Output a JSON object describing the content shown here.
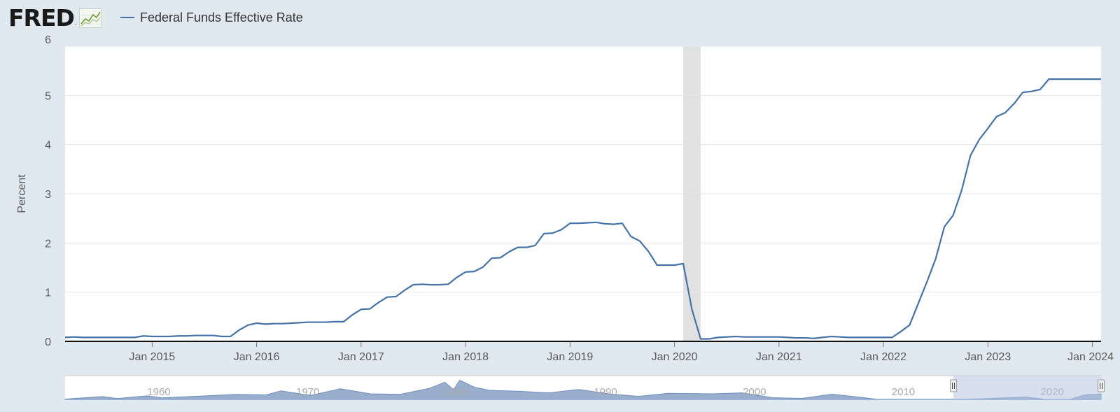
{
  "brand": {
    "logo_text": "FRED",
    "logo_mark": ".",
    "icon": "line-chart-icon"
  },
  "colors": {
    "page_background": "#e1e9f0",
    "plot_background": "#ffffff",
    "series": "#4572a7",
    "recession": "#e1e1e1",
    "gridline": "#e6e6e6",
    "navigator_fill": "#99aecc",
    "navigator_selection": "#b7c5e1"
  },
  "chart_data": {
    "type": "line",
    "title": "",
    "xlabel": "",
    "ylabel": "Percent",
    "ylim": [
      0,
      6
    ],
    "yticks": [
      0,
      1,
      2,
      3,
      4,
      5,
      6
    ],
    "xlim": [
      "2014-03",
      "2024-02"
    ],
    "xtick_labels": [
      "Jan 2015",
      "Jan 2016",
      "Jan 2017",
      "Jan 2018",
      "Jan 2019",
      "Jan 2020",
      "Jan 2021",
      "Jan 2022",
      "Jan 2023",
      "Jan 2024"
    ],
    "grid": true,
    "legend_position": "top-left",
    "series": [
      {
        "name": "Federal Funds Effective Rate",
        "color": "#4572a7",
        "x": [
          "2014-03",
          "2014-04",
          "2014-05",
          "2014-06",
          "2014-07",
          "2014-08",
          "2014-09",
          "2014-10",
          "2014-11",
          "2014-12",
          "2015-01",
          "2015-02",
          "2015-03",
          "2015-04",
          "2015-05",
          "2015-06",
          "2015-07",
          "2015-08",
          "2015-09",
          "2015-10",
          "2015-11",
          "2015-12",
          "2016-01",
          "2016-02",
          "2016-03",
          "2016-04",
          "2016-05",
          "2016-06",
          "2016-07",
          "2016-08",
          "2016-09",
          "2016-10",
          "2016-11",
          "2016-12",
          "2017-01",
          "2017-02",
          "2017-03",
          "2017-04",
          "2017-05",
          "2017-06",
          "2017-07",
          "2017-08",
          "2017-09",
          "2017-10",
          "2017-11",
          "2017-12",
          "2018-01",
          "2018-02",
          "2018-03",
          "2018-04",
          "2018-05",
          "2018-06",
          "2018-07",
          "2018-08",
          "2018-09",
          "2018-10",
          "2018-11",
          "2018-12",
          "2019-01",
          "2019-02",
          "2019-03",
          "2019-04",
          "2019-05",
          "2019-06",
          "2019-07",
          "2019-08",
          "2019-09",
          "2019-10",
          "2019-11",
          "2019-12",
          "2020-01",
          "2020-02",
          "2020-03",
          "2020-04",
          "2020-05",
          "2020-06",
          "2020-07",
          "2020-08",
          "2020-09",
          "2020-10",
          "2020-11",
          "2020-12",
          "2021-01",
          "2021-02",
          "2021-03",
          "2021-04",
          "2021-05",
          "2021-06",
          "2021-07",
          "2021-08",
          "2021-09",
          "2021-10",
          "2021-11",
          "2021-12",
          "2022-01",
          "2022-02",
          "2022-03",
          "2022-04",
          "2022-05",
          "2022-06",
          "2022-07",
          "2022-08",
          "2022-09",
          "2022-10",
          "2022-11",
          "2022-12",
          "2023-01",
          "2023-02",
          "2023-03",
          "2023-04",
          "2023-05",
          "2023-06",
          "2023-07",
          "2023-08",
          "2023-09",
          "2023-10",
          "2023-11",
          "2023-12",
          "2024-01",
          "2024-02"
        ],
        "y": [
          0.08,
          0.09,
          0.08,
          0.08,
          0.08,
          0.08,
          0.08,
          0.08,
          0.08,
          0.11,
          0.1,
          0.1,
          0.1,
          0.11,
          0.11,
          0.12,
          0.12,
          0.12,
          0.1,
          0.1,
          0.23,
          0.33,
          0.37,
          0.35,
          0.36,
          0.36,
          0.37,
          0.38,
          0.39,
          0.39,
          0.39,
          0.4,
          0.4,
          0.54,
          0.65,
          0.66,
          0.79,
          0.9,
          0.91,
          1.04,
          1.15,
          1.16,
          1.15,
          1.15,
          1.16,
          1.3,
          1.41,
          1.42,
          1.51,
          1.69,
          1.7,
          1.82,
          1.91,
          1.91,
          1.95,
          2.19,
          2.2,
          2.27,
          2.4,
          2.4,
          2.41,
          2.42,
          2.39,
          2.38,
          2.4,
          2.13,
          2.04,
          1.83,
          1.55,
          1.55,
          1.55,
          1.58,
          0.65,
          0.05,
          0.05,
          0.08,
          0.09,
          0.1,
          0.09,
          0.09,
          0.09,
          0.09,
          0.09,
          0.08,
          0.07,
          0.07,
          0.06,
          0.08,
          0.1,
          0.09,
          0.08,
          0.08,
          0.08,
          0.08,
          0.08,
          0.08,
          0.2,
          0.33,
          0.77,
          1.21,
          1.68,
          2.33,
          2.56,
          3.08,
          3.78,
          4.1,
          4.33,
          4.57,
          4.65,
          4.83,
          5.06,
          5.08,
          5.12,
          5.33,
          5.33,
          5.33,
          5.33,
          5.33,
          5.33,
          5.33
        ]
      }
    ],
    "recessions": [
      {
        "start": "2020-02",
        "end": "2020-04"
      }
    ],
    "navigator": {
      "year_labels": [
        "1960",
        "1970",
        "1980",
        "1990",
        "2000",
        "2010",
        "2020"
      ],
      "selection": [
        "2014-03",
        "2024-02"
      ]
    }
  }
}
